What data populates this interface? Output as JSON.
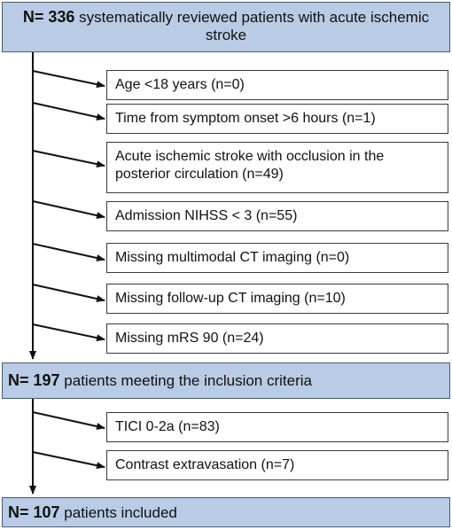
{
  "stages": [
    {
      "count": "N= 336",
      "text": "systematically reviewed patients with acute ischemic stroke"
    },
    {
      "count": "N= 197",
      "text": "patients meeting the inclusion criteria"
    },
    {
      "count": "N= 107",
      "text": "patients included"
    }
  ],
  "exclusions_1": [
    "Age <18 years (n=0)",
    "Time from symptom onset >6 hours (n=1)",
    "Acute ischemic stroke with occlusion in the posterior circulation (n=49)",
    "Admission NIHSS < 3 (n=55)",
    "Missing multimodal CT imaging (n=0)",
    "Missing follow-up CT imaging (n=10)",
    "Missing mRS 90 (n=24)"
  ],
  "exclusions_2": [
    "TICI 0-2a (n=83)",
    "Contrast extravasation (n=7)"
  ],
  "colors": {
    "stage_fill": "#b9cbe5",
    "border": "#3a3a3a"
  }
}
